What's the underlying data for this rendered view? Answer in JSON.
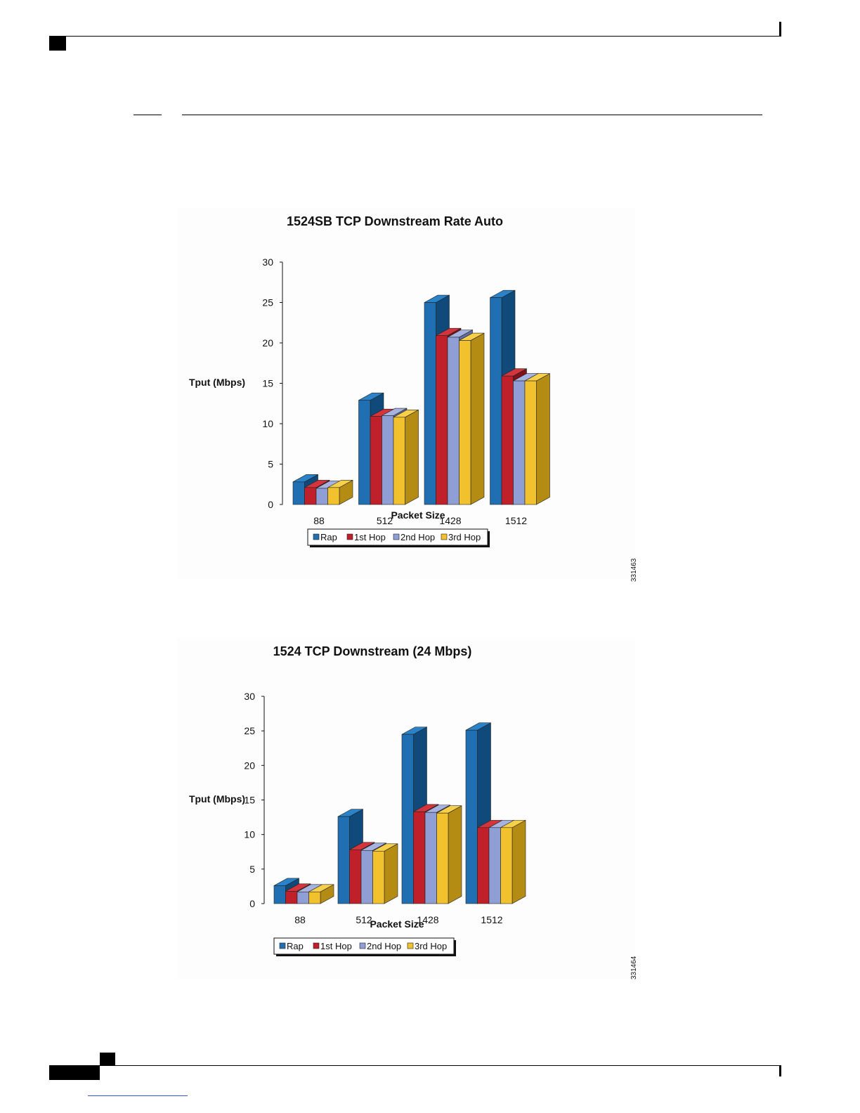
{
  "page": {
    "figure_ids": [
      "331463",
      "331464"
    ]
  },
  "series_colors": {
    "Rap": {
      "front": "#1f6fb2",
      "top": "#2a83c8",
      "side": "#0f4a7a"
    },
    "1st Hop": {
      "front": "#c0202a",
      "top": "#d4343c",
      "side": "#7e1218"
    },
    "2nd Hop": {
      "front": "#8f9fd6",
      "top": "#a6b3e0",
      "side": "#5f6da3"
    },
    "3rd Hop": {
      "front": "#f2c12e",
      "top": "#f7d04a",
      "side": "#b48c14"
    }
  },
  "chart_data": [
    {
      "type": "bar",
      "title": "1524SB TCP Downstream Rate Auto",
      "ylabel": "Tput (Mbps)",
      "xlabel": "Packet Size",
      "ylim": [
        0,
        30
      ],
      "yticks": [
        "0",
        "5",
        "10",
        "15",
        "20",
        "25",
        "30"
      ],
      "categories": [
        "88",
        "512",
        "1428",
        "1512"
      ],
      "legend_position": "bottom",
      "legend_labels": [
        "Rap",
        "1st Hop",
        "2nd Hop",
        "3rd Hop"
      ],
      "series": [
        {
          "name": "Rap",
          "values": [
            2.8,
            12.9,
            25.0,
            25.6
          ]
        },
        {
          "name": "1st Hop",
          "values": [
            2.1,
            10.9,
            20.9,
            15.9
          ]
        },
        {
          "name": "2nd Hop",
          "values": [
            2.0,
            11.0,
            20.7,
            15.3
          ]
        },
        {
          "name": "3rd Hop",
          "values": [
            2.1,
            10.8,
            20.3,
            15.3
          ]
        }
      ]
    },
    {
      "type": "bar",
      "title": "1524 TCP Downstream (24 Mbps)",
      "ylabel": "Tput (Mbps)",
      "xlabel": "Packet Size",
      "ylim": [
        0,
        30
      ],
      "yticks": [
        "0",
        "5",
        "10",
        "15",
        "20",
        "25",
        "30"
      ],
      "categories": [
        "88",
        "512",
        "1428",
        "1512"
      ],
      "legend_position": "bottom",
      "legend_labels": [
        "Rap",
        "1st Hop",
        "2nd Hop",
        "3rd Hop"
      ],
      "series": [
        {
          "name": "Rap",
          "values": [
            2.6,
            12.6,
            24.5,
            25.1
          ]
        },
        {
          "name": "1st Hop",
          "values": [
            1.8,
            7.8,
            13.3,
            11.0
          ]
        },
        {
          "name": "2nd Hop",
          "values": [
            1.7,
            7.7,
            13.2,
            11.0
          ]
        },
        {
          "name": "3rd Hop",
          "values": [
            1.7,
            7.6,
            13.1,
            11.0
          ]
        }
      ]
    }
  ]
}
